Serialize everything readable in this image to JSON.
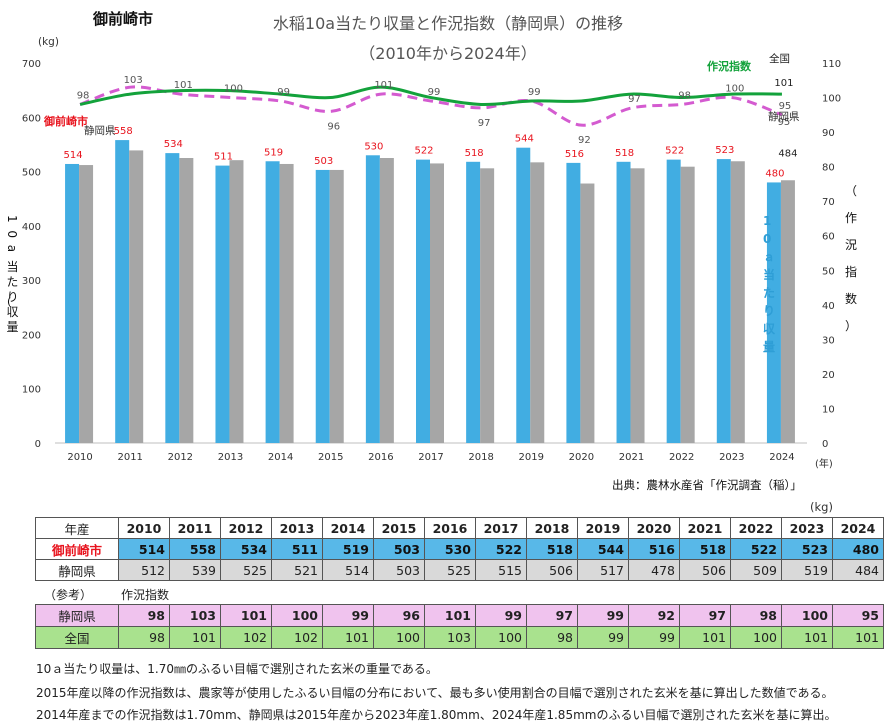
{
  "city_title": "御前崎市",
  "chart_data": {
    "type": "bar+line",
    "title": "水稲10a当たり収量と作況指数（静岡県）の推移",
    "subtitle": "（2010年から2024年）",
    "categories": [
      "2010",
      "2011",
      "2012",
      "2013",
      "2014",
      "2015",
      "2016",
      "2017",
      "2018",
      "2019",
      "2020",
      "2021",
      "2022",
      "2023",
      "2024"
    ],
    "bar_series": [
      {
        "name": "御前崎市",
        "color": "#41ade2",
        "values": [
          514,
          558,
          534,
          511,
          519,
          503,
          530,
          522,
          518,
          544,
          516,
          518,
          522,
          523,
          480
        ]
      },
      {
        "name": "静岡県",
        "color": "#a6a6a6",
        "values": [
          512,
          539,
          525,
          521,
          514,
          503,
          525,
          515,
          506,
          517,
          478,
          506,
          509,
          519,
          484
        ]
      }
    ],
    "line_series": [
      {
        "name": "静岡県",
        "color": "#d45bd0",
        "dashed": true,
        "values": [
          98,
          103,
          101,
          100,
          99,
          96,
          101,
          99,
          97,
          99,
          92,
          97,
          98,
          100,
          95
        ]
      },
      {
        "name": "全国",
        "color": "#13a23b",
        "dashed": false,
        "values": [
          98,
          101,
          102,
          102,
          101,
          100,
          103,
          100,
          98,
          99,
          99,
          101,
          100,
          101,
          101
        ]
      }
    ],
    "y_left": {
      "min": 0,
      "max": 700,
      "ticks": [
        0,
        100,
        200,
        300,
        400,
        500,
        600,
        700
      ],
      "unit": "(kg)",
      "label": "10a当たり収量"
    },
    "y_right": {
      "min": 0,
      "max": 110,
      "ticks": [
        0,
        10,
        20,
        30,
        40,
        50,
        60,
        70,
        80,
        90,
        100,
        110
      ],
      "label": "作況指数"
    },
    "x_unit": "(年)",
    "legend": {
      "city_bar": "御前崎市",
      "pref_bar": "静岡県",
      "pref_line": "静岡県",
      "nat_line": "全国",
      "line_title": "作況指数",
      "bar_title": "10ａ当たり収量",
      "right_axis_title": "（作況指数）"
    }
  },
  "source": "出典：農林水産省「作況調査（稲）」",
  "table": {
    "unit": "(kg)",
    "header_label": "年産",
    "years": [
      "2010",
      "2011",
      "2012",
      "2013",
      "2014",
      "2015",
      "2016",
      "2017",
      "2018",
      "2019",
      "2020",
      "2021",
      "2022",
      "2023",
      "2024"
    ],
    "city": {
      "label": "御前崎市",
      "values": [
        "514",
        "558",
        "534",
        "511",
        "519",
        "503",
        "530",
        "522",
        "518",
        "544",
        "516",
        "518",
        "522",
        "523",
        "480"
      ]
    },
    "pref": {
      "label": "静岡県",
      "values": [
        "512",
        "539",
        "525",
        "521",
        "514",
        "503",
        "525",
        "515",
        "506",
        "517",
        "478",
        "506",
        "509",
        "519",
        "484"
      ]
    }
  },
  "reference": {
    "note": "（参考）",
    "title": "作況指数",
    "pref": {
      "label": "静岡県",
      "values": [
        "98",
        "103",
        "101",
        "100",
        "99",
        "96",
        "101",
        "99",
        "97",
        "99",
        "92",
        "97",
        "98",
        "100",
        "95"
      ]
    },
    "nat": {
      "label": "全国",
      "values": [
        "98",
        "101",
        "102",
        "102",
        "101",
        "100",
        "103",
        "100",
        "98",
        "99",
        "99",
        "101",
        "100",
        "101",
        "101"
      ]
    }
  },
  "notes": [
    "10ａ当たり収量は、1.70㎜のふるい目幅で選別された玄米の重量である。",
    "2015年産以降の作況指数は、農家等が使用したふるい目幅の分布において、最も多い使用割合の目幅で選別された玄米を基に算出した数値である。",
    "2014年産までの作況指数は1.70mm、静岡県は2015年産から2023年産1.80mm、2024年産1.85mmのふるい目幅で選別された玄米を基に算出。"
  ]
}
